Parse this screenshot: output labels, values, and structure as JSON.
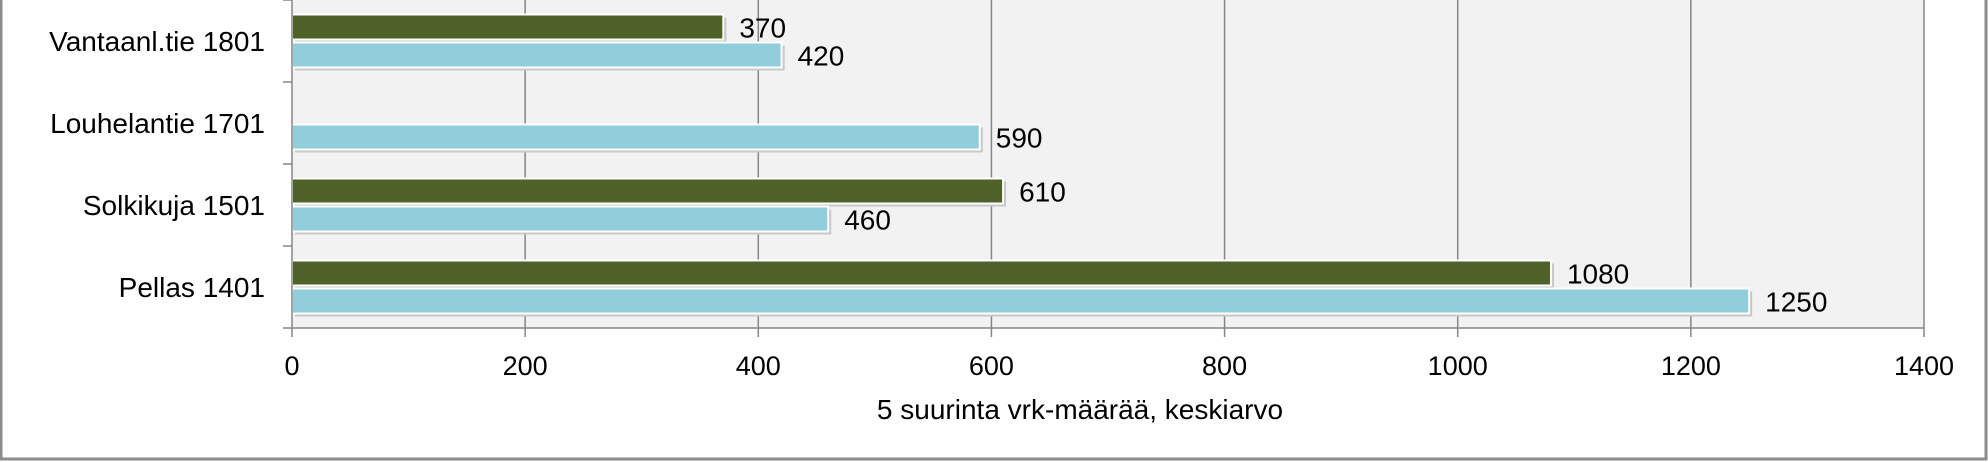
{
  "chart_data": {
    "type": "bar",
    "orientation": "horizontal",
    "categories": [
      "Vantaanl.tie 1801",
      "Louhelantie 1701",
      "Solkikuja 1501",
      "Pellas 1401"
    ],
    "series": [
      {
        "values": [
          370,
          null,
          610,
          1080
        ],
        "color": "#4f6228"
      },
      {
        "values": [
          420,
          590,
          460,
          1250
        ],
        "color": "#92cddc"
      }
    ],
    "xlabel": "5 suurinta vrk-määrää, keskiarvo",
    "ylabel": "",
    "xlim": [
      0,
      1400
    ],
    "xticks": [
      0,
      200,
      400,
      600,
      800,
      1000,
      1200,
      1400
    ],
    "grid": true,
    "plot_background": "#f2f2f2"
  }
}
